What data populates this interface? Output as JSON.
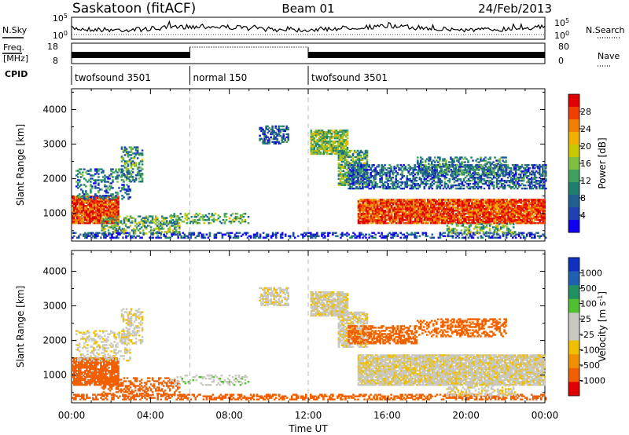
{
  "header": {
    "station": "Saskatoon (fitACF)",
    "beam": "Beam 01",
    "date": "24/Feb/2013"
  },
  "strips": {
    "nsky_label": "N.Sky",
    "nsearch_label": "N.Search",
    "freq_label_1": "Freq.",
    "freq_label_2": "[MHz]",
    "nave_label": "Nave",
    "cpid_label": "CPID",
    "noise_left_ticks": [
      "10^5",
      "10^0"
    ],
    "noise_right_ticks": [
      "10^5",
      "10^0"
    ],
    "freq_left_ticks": [
      "18",
      "8"
    ],
    "freq_right_ticks": [
      "80",
      "0"
    ],
    "cpid_segments": [
      {
        "label": "twofsound 3501",
        "start_hour": 0,
        "end_hour": 6
      },
      {
        "label": "normal 150",
        "start_hour": 6,
        "end_hour": 12
      },
      {
        "label": "twofsound 3501",
        "start_hour": 12,
        "end_hour": 24
      }
    ]
  },
  "x_axis": {
    "label": "Time UT",
    "ticks": [
      "00:00",
      "04:00",
      "08:00",
      "12:00",
      "16:00",
      "20:00",
      "00:00"
    ]
  },
  "chart_data": [
    {
      "type": "heatmap",
      "title": "",
      "xlabel": "Time UT",
      "ylabel": "Slant Range [km]",
      "xlim_hours": [
        0,
        24
      ],
      "ylim_km": [
        200,
        4600
      ],
      "yticks": [
        "4000",
        "3000",
        "2000",
        "1000"
      ],
      "colorbar": {
        "label": "Power [dB]",
        "ticks": [
          "28",
          "24",
          "20",
          "16",
          "12",
          "8",
          "4"
        ],
        "colors": [
          "#e00000",
          "#f04000",
          "#f08000",
          "#f0b000",
          "#c8c800",
          "#80c040",
          "#40a060",
          "#208070",
          "#206090",
          "#2040b0",
          "#1000f0"
        ]
      },
      "dashed_time_markers_hours": [
        6,
        12
      ],
      "regions": [
        {
          "t0": 0.0,
          "t1": 2.4,
          "r0": 700,
          "r1": 1500,
          "value": 26,
          "density": 0.95
        },
        {
          "t0": 0.2,
          "t1": 3.0,
          "r0": 1400,
          "r1": 2300,
          "value": 10,
          "density": 0.35
        },
        {
          "t0": 2.5,
          "t1": 3.6,
          "r0": 1900,
          "r1": 2900,
          "value": 12,
          "density": 0.45
        },
        {
          "t0": 1.5,
          "t1": 5.5,
          "r0": 400,
          "r1": 900,
          "value": 14,
          "density": 0.45
        },
        {
          "t0": 0.0,
          "t1": 24.0,
          "r0": 280,
          "r1": 420,
          "value": 6,
          "density": 0.45
        },
        {
          "t0": 5.0,
          "t1": 9.0,
          "r0": 700,
          "r1": 1000,
          "value": 14,
          "density": 0.35
        },
        {
          "t0": 9.5,
          "t1": 11.0,
          "r0": 3000,
          "r1": 3500,
          "value": 9,
          "density": 0.55
        },
        {
          "t0": 12.1,
          "t1": 14.0,
          "r0": 2700,
          "r1": 3400,
          "value": 16,
          "density": 0.8
        },
        {
          "t0": 13.5,
          "t1": 15.0,
          "r0": 1800,
          "r1": 2800,
          "value": 14,
          "density": 0.7
        },
        {
          "t0": 14.0,
          "t1": 24.0,
          "r0": 1700,
          "r1": 2400,
          "value": 9,
          "density": 0.55
        },
        {
          "t0": 14.5,
          "t1": 24.0,
          "r0": 700,
          "r1": 1400,
          "value": 26,
          "density": 0.92
        },
        {
          "t0": 17.5,
          "t1": 22.0,
          "r0": 2100,
          "r1": 2600,
          "value": 11,
          "density": 0.45
        },
        {
          "t0": 19.0,
          "t1": 22.5,
          "r0": 400,
          "r1": 700,
          "value": 14,
          "density": 0.4
        }
      ]
    },
    {
      "type": "heatmap",
      "title": "",
      "xlabel": "Time UT",
      "ylabel": "Slant Range [km]",
      "xlim_hours": [
        0,
        24
      ],
      "ylim_km": [
        200,
        4600
      ],
      "yticks": [
        "4000",
        "3000",
        "2000",
        "1000"
      ],
      "colorbar": {
        "label": "Velocity [m s^-1]",
        "ticks": [
          "1000",
          "500",
          "100",
          "25",
          "-25",
          "-100",
          "-500",
          "-1000"
        ],
        "colors": [
          "#1030c0",
          "#2060b0",
          "#209060",
          "#50c030",
          "#c8c8c0",
          "#c8c8c0",
          "#f0c000",
          "#f09000",
          "#f06000",
          "#e00000"
        ]
      },
      "dashed_time_markers_hours": [
        6,
        12
      ],
      "regions": [
        {
          "t0": 0.0,
          "t1": 2.4,
          "r0": 700,
          "r1": 1500,
          "value": -400,
          "density": 0.85
        },
        {
          "t0": 0.2,
          "t1": 3.0,
          "r0": 1400,
          "r1": 2300,
          "value": 0,
          "density": 0.3
        },
        {
          "t0": 2.5,
          "t1": 3.6,
          "r0": 1900,
          "r1": 2900,
          "value": 0,
          "density": 0.45
        },
        {
          "t0": 1.5,
          "t1": 5.5,
          "r0": 400,
          "r1": 900,
          "value": -200,
          "density": 0.4
        },
        {
          "t0": 0.0,
          "t1": 24.0,
          "r0": 280,
          "r1": 420,
          "value": -200,
          "density": 0.45
        },
        {
          "t0": 5.0,
          "t1": 9.0,
          "r0": 700,
          "r1": 1000,
          "value": 60,
          "density": 0.3
        },
        {
          "t0": 9.5,
          "t1": 11.0,
          "r0": 3000,
          "r1": 3500,
          "value": 0,
          "density": 0.55
        },
        {
          "t0": 12.1,
          "t1": 14.0,
          "r0": 2700,
          "r1": 3400,
          "value": 0,
          "density": 0.85
        },
        {
          "t0": 13.5,
          "t1": 15.0,
          "r0": 1800,
          "r1": 2800,
          "value": 0,
          "density": 0.75
        },
        {
          "t0": 14.0,
          "t1": 17.5,
          "r0": 1900,
          "r1": 2400,
          "value": -300,
          "density": 0.55
        },
        {
          "t0": 14.5,
          "t1": 24.0,
          "r0": 700,
          "r1": 1600,
          "value": 0,
          "density": 0.9
        },
        {
          "t0": 17.5,
          "t1": 22.0,
          "r0": 2100,
          "r1": 2600,
          "value": -300,
          "density": 0.45
        },
        {
          "t0": 19.0,
          "t1": 22.5,
          "r0": 400,
          "r1": 700,
          "value": 0,
          "density": 0.4
        }
      ]
    }
  ]
}
